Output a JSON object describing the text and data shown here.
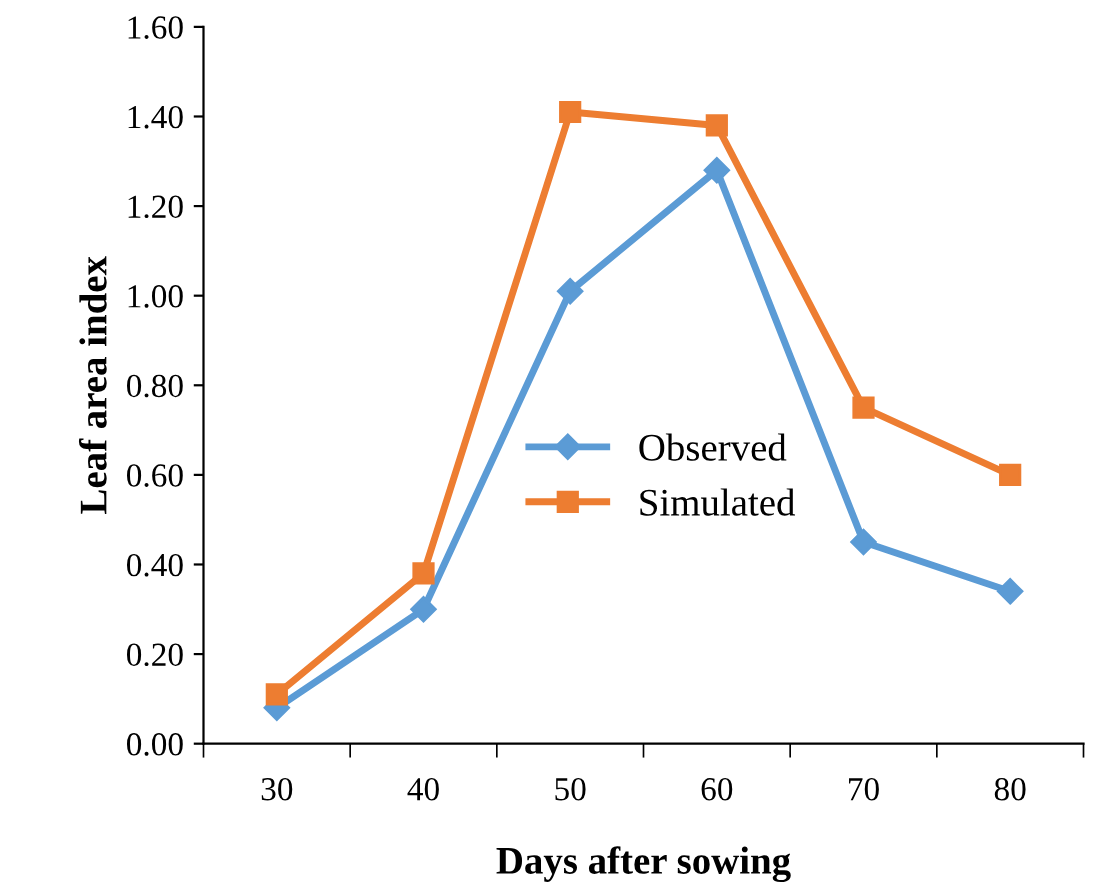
{
  "chart_data": {
    "type": "line",
    "xlabel": "Days after sowing",
    "ylabel": "Leaf area index",
    "categories": [
      "30",
      "40",
      "50",
      "60",
      "70",
      "80"
    ],
    "series": [
      {
        "name": "Observed",
        "color": "#5b9bd5",
        "marker": "diamond",
        "values": [
          0.08,
          0.3,
          1.01,
          1.28,
          0.45,
          0.34
        ]
      },
      {
        "name": "Simulated",
        "color": "#ed7d31",
        "marker": "square",
        "values": [
          0.11,
          0.38,
          1.41,
          1.38,
          0.75,
          0.6
        ]
      }
    ],
    "ylim": [
      0,
      1.6
    ],
    "yticks": [
      {
        "value": 0,
        "label": "0.00"
      },
      {
        "value": 0.2,
        "label": "0.20"
      },
      {
        "value": 0.4,
        "label": "0.40"
      },
      {
        "value": 0.6,
        "label": "0.60"
      },
      {
        "value": 0.8,
        "label": "0.80"
      },
      {
        "value": 1.0,
        "label": "1.00"
      },
      {
        "value": 1.2,
        "label": "1.20"
      },
      {
        "value": 1.4,
        "label": "1.40"
      },
      {
        "value": 1.6,
        "label": "1.60"
      }
    ],
    "grid": false,
    "legend": "center right",
    "line_style": "solid"
  }
}
